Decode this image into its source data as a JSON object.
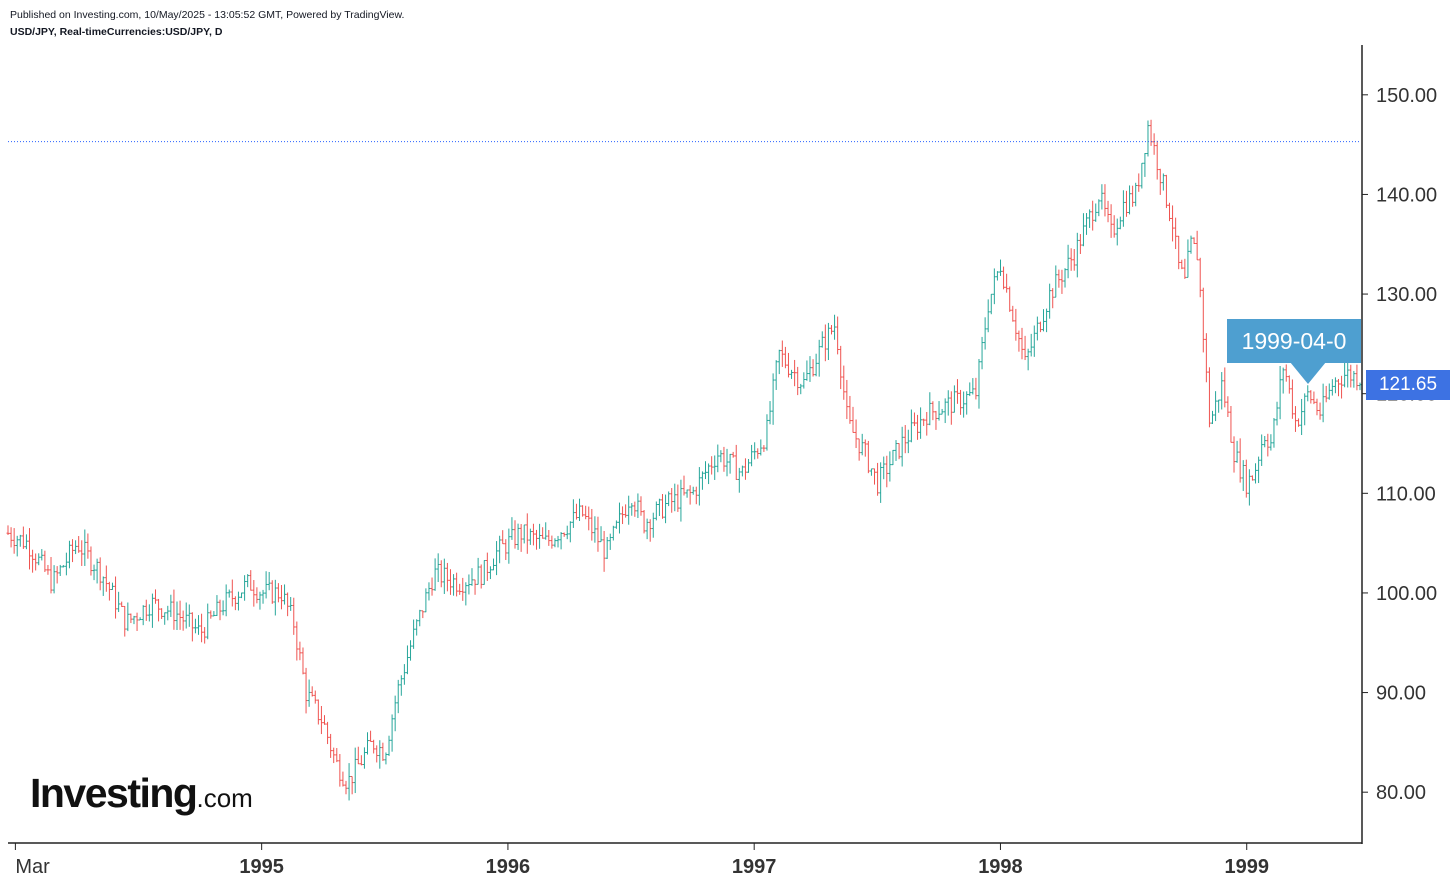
{
  "header": {
    "published": "Published on Investing.com, 10/May/2025 - 13:05:52 GMT, Powered by TradingView.",
    "symbol": "USD/JPY, Real-timeCurrencies:USD/JPY, D"
  },
  "logo": {
    "brand": "Investing",
    "suffix": ".com"
  },
  "last_price": "121.65",
  "crosshair_date": "1999-04-0",
  "colors": {
    "up": "#26a69a",
    "down": "#ef5350",
    "price_tag": "#3d72e3",
    "date_tag": "#4e9fd0",
    "ref_line": "#2962ff"
  },
  "chart_data": {
    "type": "line",
    "style": "ohlc-bars",
    "ylim": [
      75,
      155
    ],
    "yticks": [
      "150.00",
      "140.00",
      "130.00",
      "120.00",
      "110.00",
      "100.00",
      "90.00",
      "80.00"
    ],
    "xlim": [
      1993.97,
      1999.46
    ],
    "xticks": [
      {
        "label": "Mar",
        "x": 1994.0
      },
      {
        "label": "1995",
        "x": 1995.0
      },
      {
        "label": "1996",
        "x": 1996.0
      },
      {
        "label": "1997",
        "x": 1997.0
      },
      {
        "label": "1998",
        "x": 1998.0
      },
      {
        "label": "1999",
        "x": 1999.0
      }
    ],
    "reference_line": 145.3,
    "series": [
      {
        "x": [
          1993.97,
          1994.05,
          1994.15,
          1994.25,
          1994.35,
          1994.45,
          1994.55,
          1994.65,
          1994.75,
          1994.85,
          1994.95,
          1995.0,
          1995.08,
          1995.13,
          1995.18,
          1995.25,
          1995.3,
          1995.35,
          1995.45,
          1995.5,
          1995.55,
          1995.62,
          1995.7,
          1995.8,
          1995.9,
          1995.95,
          1996.05,
          1996.15,
          1996.25,
          1996.3,
          1996.4,
          1996.5,
          1996.55,
          1996.65,
          1996.75,
          1996.85,
          1996.95,
          1997.05,
          1997.1,
          1997.2,
          1997.28,
          1997.33,
          1997.38,
          1997.45,
          1997.5,
          1997.6,
          1997.7,
          1997.8,
          1997.9,
          1997.95,
          1998.0,
          1998.05,
          1998.1,
          1998.2,
          1998.3,
          1998.4,
          1998.45,
          1998.5,
          1998.55,
          1998.6,
          1998.65,
          1998.7,
          1998.72,
          1998.75,
          1998.77,
          1998.8,
          1998.85,
          1998.9,
          1998.95,
          1999.0,
          1999.03,
          1999.07,
          1999.1,
          1999.15,
          1999.2,
          1999.25,
          1999.3,
          1999.35,
          1999.4,
          1999.46
        ],
        "y": [
          106,
          105,
          101,
          105,
          102,
          97,
          99,
          98,
          96,
          99,
          101,
          100,
          100,
          97,
          90,
          87,
          83,
          81,
          85,
          84,
          90,
          96,
          102,
          101,
          102,
          104,
          106,
          105,
          107,
          108,
          104,
          110,
          107,
          109,
          110,
          114,
          112,
          116,
          124,
          121,
          125,
          127,
          117,
          114,
          111,
          115,
          118,
          119,
          120,
          129,
          133,
          128,
          123,
          130,
          134,
          140,
          136,
          139,
          140,
          147,
          142,
          137,
          133,
          131,
          135,
          134,
          117,
          121,
          114,
          111,
          112,
          116,
          115,
          123,
          117,
          120,
          118,
          121,
          122,
          121.65
        ]
      }
    ]
  }
}
